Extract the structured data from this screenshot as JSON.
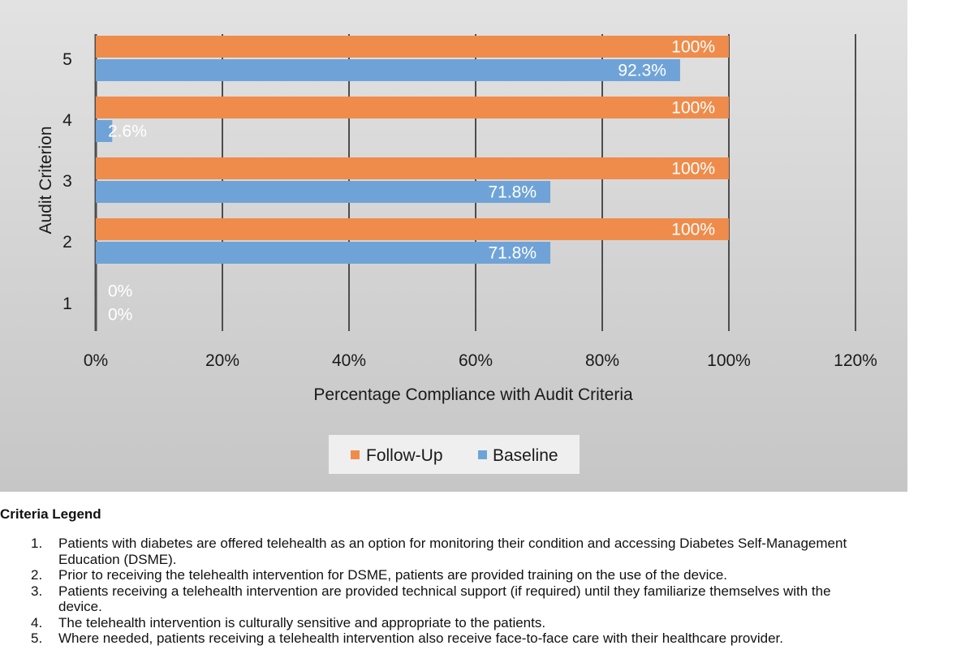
{
  "colors": {
    "follow_up": "#ef8c4b",
    "baseline": "#6fa3d8",
    "panel_top": "#e2e2e2",
    "panel_bottom": "#c6c6c6",
    "gridline": "#4d4d4d",
    "data_label": "#ffffff",
    "legend_box": "#efefef"
  },
  "chart_data": {
    "type": "bar",
    "orientation": "horizontal",
    "categories": [
      "1",
      "2",
      "3",
      "4",
      "5"
    ],
    "series": [
      {
        "name": "Follow-Up",
        "color": "#ef8c4b",
        "values": [
          0,
          100,
          100,
          100,
          100
        ],
        "labels": [
          "0%",
          "100%",
          "100%",
          "100%",
          "100%"
        ]
      },
      {
        "name": "Baseline",
        "color": "#6fa3d8",
        "values": [
          0,
          71.8,
          71.8,
          2.6,
          92.3
        ],
        "labels": [
          "0%",
          "71.8%",
          "71.8%",
          "2.6%",
          "92.3%"
        ]
      }
    ],
    "xlim": [
      0,
      120
    ],
    "x_ticks": [
      0,
      20,
      40,
      60,
      80,
      100,
      120
    ],
    "x_tick_labels": [
      "0%",
      "20%",
      "40%",
      "60%",
      "80%",
      "100%",
      "120%"
    ],
    "xlabel": "Percentage Compliance with Audit Criteria",
    "ylabel": "Audit Criterion",
    "grid": "vertical",
    "legend_position": "bottom-center"
  },
  "legend_title": "Criteria Legend",
  "criteria": [
    {
      "number": "1.",
      "text_lines": [
        "Patients with diabetes are offered telehealth as an option for monitoring their condition and accessing Diabetes Self-Management",
        "Education (DSME)."
      ]
    },
    {
      "number": "2.",
      "text_lines": [
        "Prior to receiving the telehealth intervention for DSME, patients are provided training on the use of the device."
      ]
    },
    {
      "number": "3.",
      "text_lines": [
        "Patients receiving a telehealth intervention are provided technical support (if required) until they familiarize themselves with the",
        "device."
      ]
    },
    {
      "number": "4.",
      "text_lines": [
        "The telehealth intervention is culturally sensitive and appropriate to the patients."
      ]
    },
    {
      "number": "5.",
      "text_lines": [
        "Where needed, patients receiving a telehealth intervention also receive face-to-face care with their healthcare provider."
      ]
    }
  ]
}
